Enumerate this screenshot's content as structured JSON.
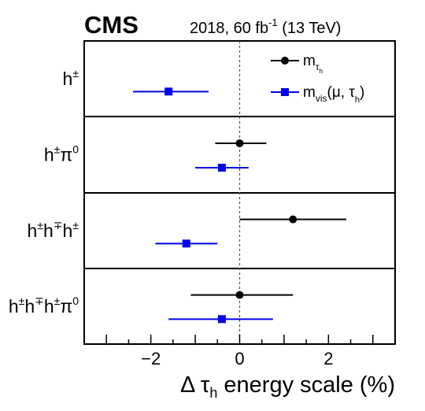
{
  "header": {
    "experiment": "CMS",
    "lumi_prefix": "2018, 60 fb",
    "lumi_exp": "-1",
    "lumi_suffix": " (13 TeV)"
  },
  "chart_data": {
    "type": "scatter",
    "xlabel": "Δ τh energy scale (%)",
    "xlim": [
      -3.5,
      3.5
    ],
    "xticks": [
      "−2",
      "0",
      "2"
    ],
    "xtick_values": [
      -2,
      0,
      2
    ],
    "reference_line_x": 0,
    "categories": [
      "h±",
      "h±π0",
      "h±h∓h±",
      "h±h∓h±π0"
    ],
    "series": [
      {
        "name": "m_τh",
        "color": "#000000",
        "marker": "circle",
        "points": [
          null,
          {
            "x": 0.0,
            "xlo": -0.55,
            "xhi": 0.6
          },
          {
            "x": 1.2,
            "xlo": 0.0,
            "xhi": 2.4
          },
          {
            "x": 0.0,
            "xlo": -1.1,
            "xhi": 1.2
          }
        ]
      },
      {
        "name": "m_vis(μ, τh)",
        "color": "#0000ee",
        "marker": "square",
        "points": [
          {
            "x": -1.6,
            "xlo": -2.4,
            "xhi": -0.7
          },
          {
            "x": -0.4,
            "xlo": -1.0,
            "xhi": 0.2
          },
          {
            "x": -1.2,
            "xlo": -1.9,
            "xhi": -0.5
          },
          {
            "x": -0.4,
            "xlo": -1.6,
            "xhi": 0.75
          }
        ]
      }
    ],
    "legend": {
      "position": "top-right",
      "entries": [
        "m",
        "m"
      ],
      "entry0_sub": "τ",
      "entry0_subsub": "h",
      "entry1_sub": "vis",
      "entry1_args": "(μ, τ",
      "entry1_args_sub": "h",
      "entry1_close": ")"
    }
  },
  "category_labels": [
    {
      "parts": [
        {
          "t": "h"
        },
        {
          "t": "±",
          "sup": true
        }
      ]
    },
    {
      "parts": [
        {
          "t": "h"
        },
        {
          "t": "±",
          "sup": true
        },
        {
          "t": "π"
        },
        {
          "t": "0",
          "sup": true
        }
      ]
    },
    {
      "parts": [
        {
          "t": "h"
        },
        {
          "t": "±",
          "sup": true
        },
        {
          "t": "h"
        },
        {
          "t": "∓",
          "sup": true
        },
        {
          "t": "h"
        },
        {
          "t": "±",
          "sup": true
        }
      ]
    },
    {
      "parts": [
        {
          "t": "h"
        },
        {
          "t": "±",
          "sup": true
        },
        {
          "t": "h"
        },
        {
          "t": "∓",
          "sup": true
        },
        {
          "t": "h"
        },
        {
          "t": "±",
          "sup": true
        },
        {
          "t": "π"
        },
        {
          "t": "0",
          "sup": true
        }
      ]
    }
  ],
  "xaxis_title": {
    "prefix": "Δ τ",
    "sub": "h",
    "suffix": " energy scale (%)"
  }
}
